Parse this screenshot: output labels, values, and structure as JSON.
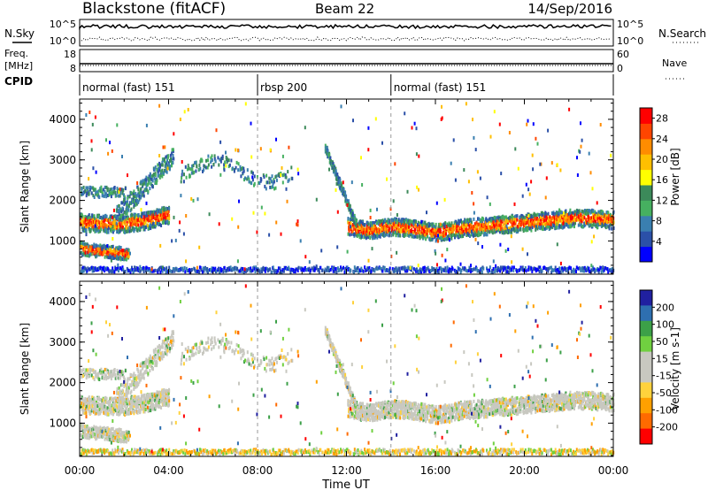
{
  "header": {
    "station": "Blackstone (fitACF)",
    "beam": "Beam 22",
    "date": "14/Sep/2016"
  },
  "left_labels": {
    "nsky": "N.Sky",
    "freq_line1": "Freq.",
    "freq_line2": "[MHz]",
    "cpid": "CPID"
  },
  "right_labels": {
    "nsearch": "N.Search",
    "nave": "Nave"
  },
  "noise_panel": {
    "left_ticks": [
      "10^5",
      "10^0"
    ],
    "right_ticks": [
      "10^5",
      "10^0"
    ]
  },
  "freq_panel": {
    "left_ticks": [
      "18",
      "8"
    ],
    "right_ticks": [
      "60",
      "0"
    ]
  },
  "cpid_segments": [
    {
      "label": "normal (fast) 151",
      "start_hour": 0.0
    },
    {
      "label": "rbsp 200",
      "start_hour": 8.0
    },
    {
      "label": "normal (fast) 151",
      "start_hour": 14.0
    }
  ],
  "colors": {
    "power": [
      "#0000ff",
      "#2b50a8",
      "#3a7fb0",
      "#46b060",
      "#3c8a5a",
      "#ffff00",
      "#ffbf00",
      "#ff8c00",
      "#ff4500",
      "#ff0000"
    ],
    "velocity": [
      "#2020a0",
      "#2e6fb0",
      "#3ca048",
      "#70d040",
      "#c8c8c0",
      "#c8c8c0",
      "#ffd23c",
      "#ffa000",
      "#ff6a00",
      "#ff0000"
    ]
  },
  "chart_data": [
    {
      "type": "heatmap",
      "title": "Power",
      "xlabel": "Time UT",
      "ylabel": "Slant Range [km]",
      "colorbar_label": "Power [dB]",
      "xlim": [
        0,
        24
      ],
      "ylim": [
        180,
        4500
      ],
      "x_ticks": [
        "00:00",
        "04:00",
        "08:00",
        "12:00",
        "16:00",
        "20:00",
        "00:00"
      ],
      "y_ticks": [
        1000,
        2000,
        3000,
        4000
      ],
      "colorbar_ticks": [
        4,
        8,
        12,
        16,
        20,
        24,
        28
      ],
      "colorbar_range": [
        0,
        30
      ],
      "features": [
        {
          "name": "main_band",
          "hours": [
            0,
            1,
            2,
            3,
            4,
            5,
            6,
            7,
            8,
            9,
            10,
            11,
            12,
            13,
            14,
            15,
            16,
            17,
            18,
            19,
            20,
            21,
            22,
            23,
            24
          ],
          "range_km": [
            1450,
            1420,
            1420,
            1500,
            1650,
            null,
            null,
            null,
            null,
            null,
            null,
            null,
            1350,
            1250,
            1350,
            1300,
            1200,
            1300,
            1350,
            1400,
            1450,
            1500,
            1550,
            1550,
            1500
          ]
        }
      ]
    },
    {
      "type": "heatmap",
      "title": "Velocity",
      "xlabel": "Time UT",
      "ylabel": "Slant Range [km]",
      "colorbar_label": "Velocity [m s-1]",
      "xlim": [
        0,
        24
      ],
      "ylim": [
        180,
        4500
      ],
      "x_ticks": [
        "00:00",
        "04:00",
        "08:00",
        "12:00",
        "16:00",
        "20:00",
        "00:00"
      ],
      "y_ticks": [
        1000,
        2000,
        3000,
        4000
      ],
      "colorbar_ticks": [
        200,
        100,
        50,
        15,
        -15,
        -50,
        -100,
        -200
      ],
      "colorbar_range": [
        -250,
        250
      ]
    }
  ]
}
